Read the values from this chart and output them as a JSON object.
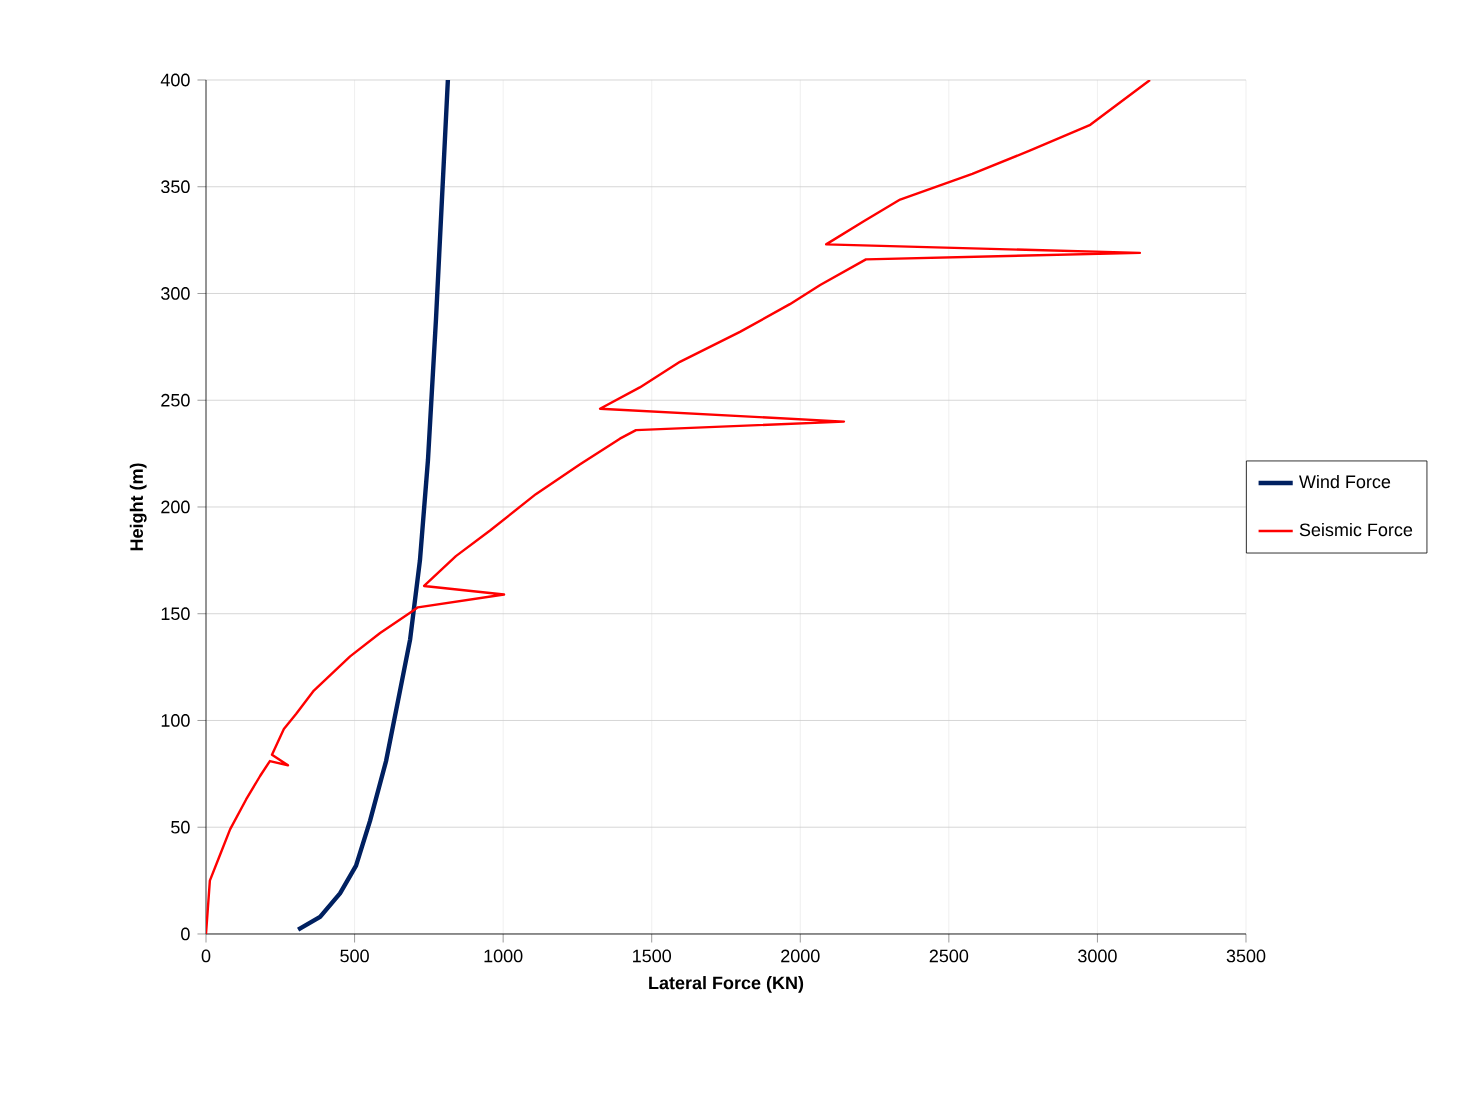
{
  "chart_data": {
    "type": "line",
    "xlabel": "Lateral Force (KN)",
    "ylabel": "Height (m)",
    "xlim": [
      0,
      3500
    ],
    "ylim": [
      0,
      400
    ],
    "xticks": [
      0,
      500,
      1000,
      1500,
      2000,
      2500,
      3000,
      3500
    ],
    "yticks": [
      0,
      50,
      100,
      150,
      200,
      250,
      300,
      350,
      400
    ],
    "grid": true,
    "legend": "right",
    "marker": "none",
    "series": [
      {
        "name": "Wind Force",
        "color": "#002060",
        "x": [
          310,
          384,
          451,
          505,
          552,
          606,
          653,
          687,
          720,
          747,
          774,
          794,
          814
        ],
        "values": [
          2,
          8,
          19,
          32,
          53,
          81,
          114,
          138,
          175,
          222,
          288,
          344,
          400
        ]
      },
      {
        "name": "Seismic Force",
        "color": "#ff0000",
        "x": [
          0,
          13,
          47,
          81,
          135,
          182,
          215,
          276,
          222,
          262,
          303,
          363,
          485,
          586,
          693,
          713,
          1003,
          734,
          841,
          956,
          1110,
          1259,
          1393,
          1447,
          2147,
          1326,
          1460,
          1595,
          1797,
          1965,
          2067,
          2221,
          3143,
          2087,
          2215,
          2336,
          2579,
          2774,
          2976,
          3177
        ],
        "values": [
          0,
          25,
          37,
          49,
          63,
          74,
          81,
          79,
          84,
          96,
          103,
          114,
          130,
          141,
          151,
          153,
          159,
          163,
          177,
          189,
          206,
          220,
          232,
          236,
          240,
          246,
          256,
          268,
          282,
          295,
          304,
          316,
          319,
          323,
          334,
          344,
          356,
          367,
          379,
          400
        ]
      }
    ]
  }
}
